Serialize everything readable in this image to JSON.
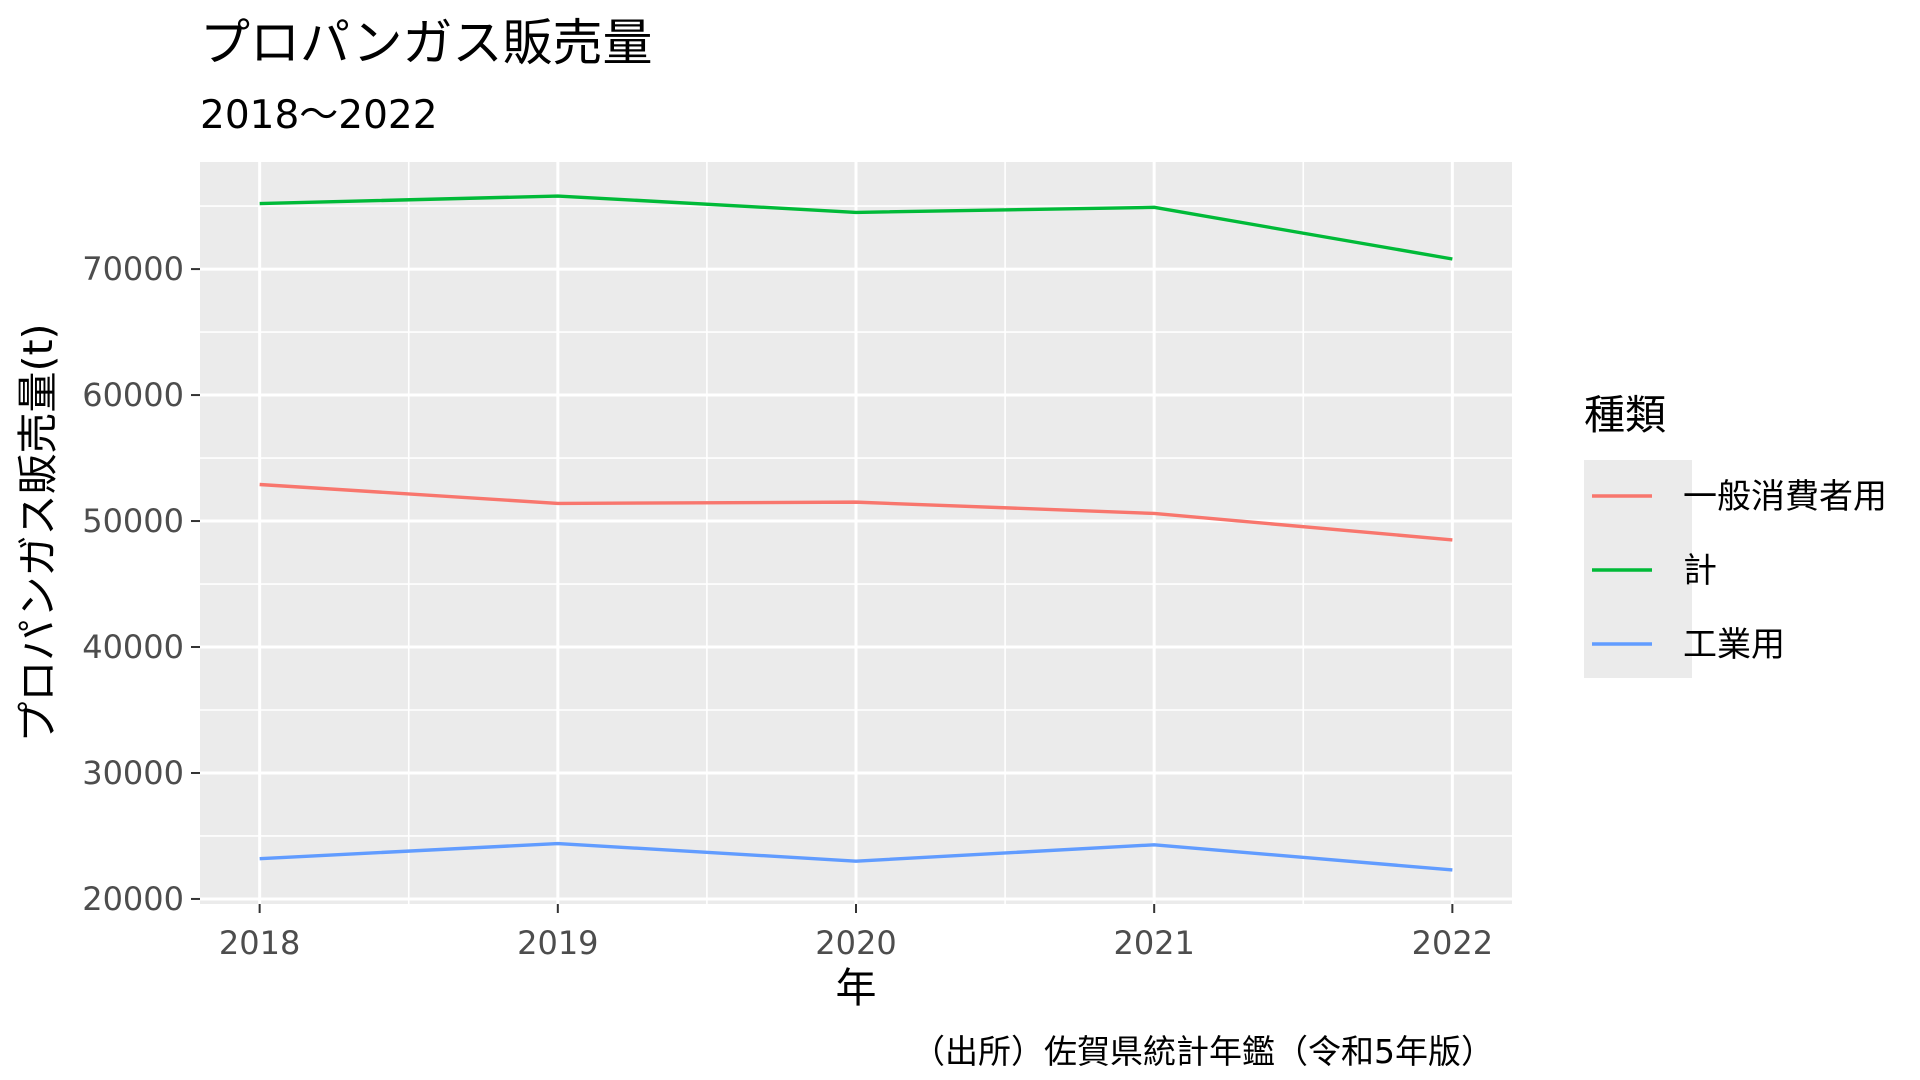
{
  "chart_data": {
    "type": "line",
    "title": "プロパンガス販売量",
    "subtitle": "2018～2022",
    "xlabel": "年",
    "ylabel": "プロパンガス販売量(t)",
    "caption": "（出所）佐賀県統計年鑑（令和5年版）",
    "x": [
      2018,
      2019,
      2020,
      2021,
      2022
    ],
    "x_tick_labels": [
      "2018",
      "2019",
      "2020",
      "2021",
      "2022"
    ],
    "y_ticks": [
      20000,
      30000,
      40000,
      50000,
      60000,
      70000
    ],
    "y_tick_labels": [
      "20000",
      "30000",
      "40000",
      "50000",
      "60000",
      "70000"
    ],
    "xlim": [
      2017.8,
      2022.2
    ],
    "ylim": [
      19600,
      78500
    ],
    "grid": true,
    "panel_background": "#ebebeb",
    "legend": {
      "title": "種類",
      "position": "right"
    },
    "series": [
      {
        "name": "一般消費者用",
        "color": "#f8766d",
        "values": [
          52900,
          51400,
          51500,
          50600,
          48500
        ]
      },
      {
        "name": "計",
        "color": "#00ba38",
        "values": [
          75200,
          75800,
          74500,
          74900,
          70800
        ]
      },
      {
        "name": "工業用",
        "color": "#619cff",
        "values": [
          23200,
          24400,
          23000,
          24300,
          22300
        ]
      }
    ]
  }
}
